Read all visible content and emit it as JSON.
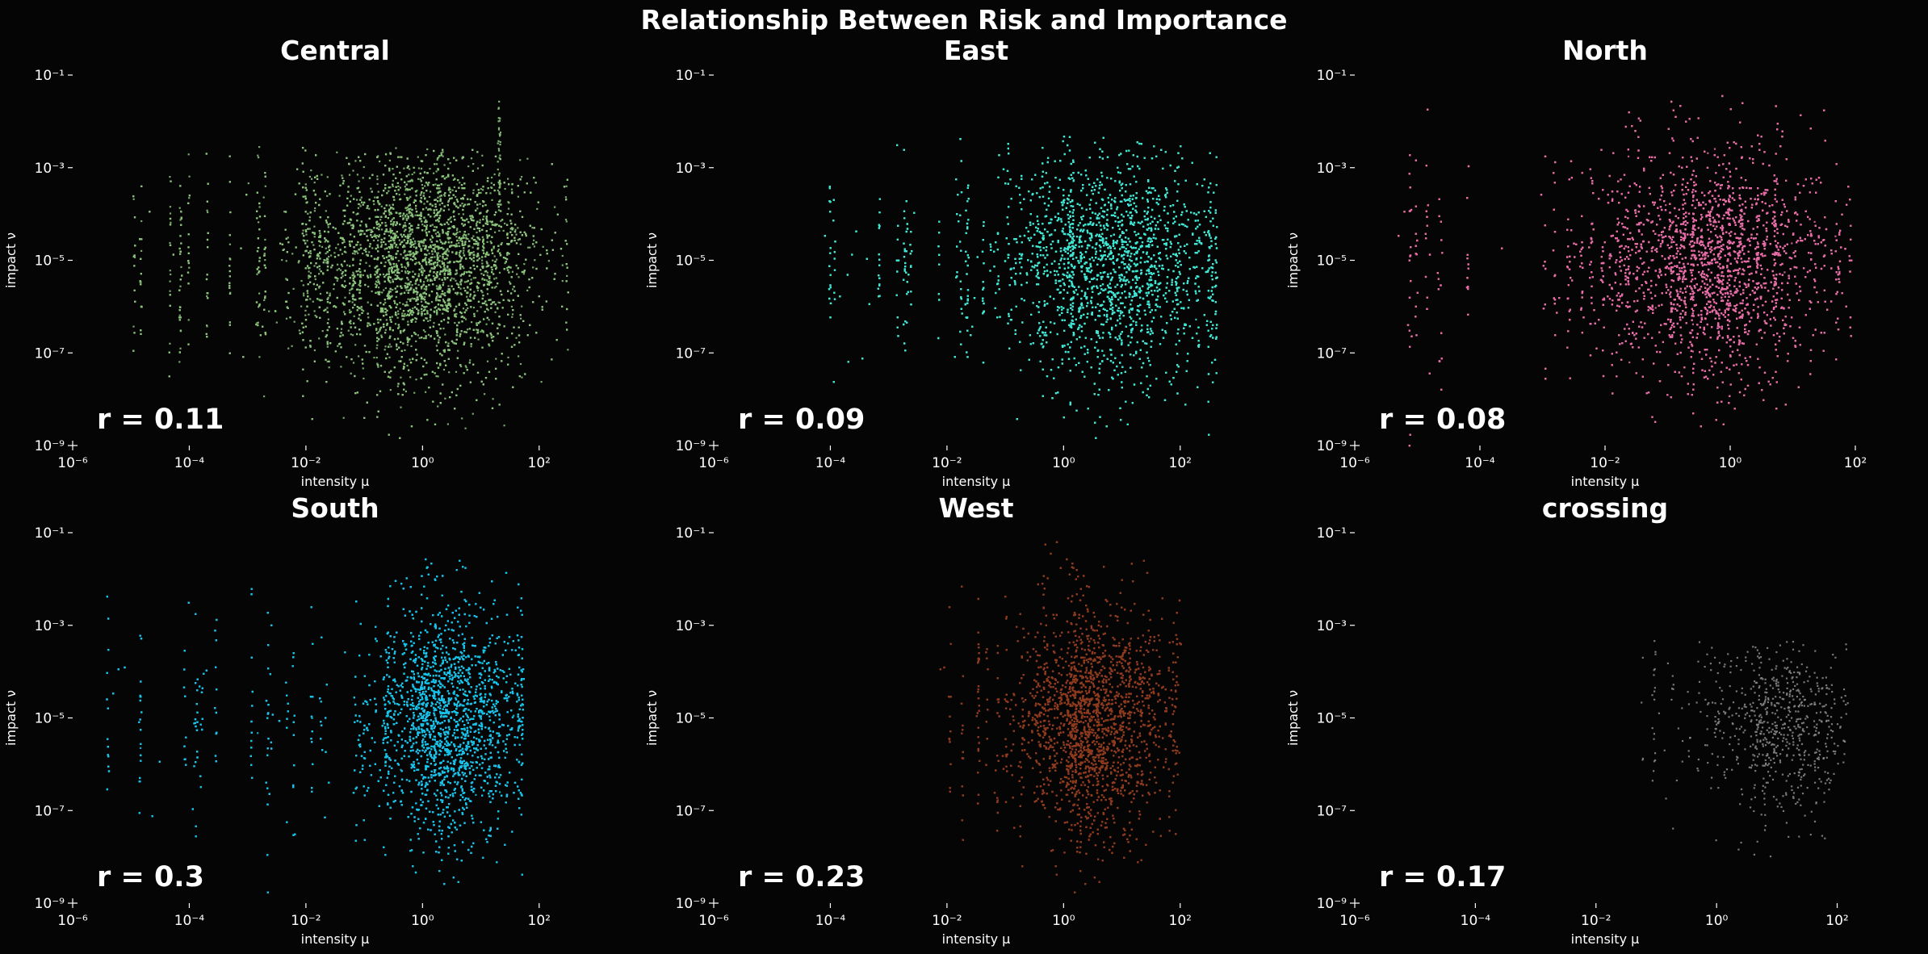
{
  "figure": {
    "title": "Relationship Between Risk and Importance",
    "background": "#050505",
    "text_color": "#ffffff"
  },
  "chart_data": [
    {
      "type": "scatter",
      "title": "Central",
      "xlabel": "intensity μ",
      "ylabel": "impact ν",
      "x_scale": "log",
      "y_scale": "log",
      "xlim": [
        1e-06,
        1000
      ],
      "ylim": [
        1e-09,
        0.1
      ],
      "x_ticks": [
        1e-06,
        0.0001,
        0.01,
        1,
        100
      ],
      "y_ticks": [
        1e-09,
        1e-07,
        1e-05,
        0.001,
        0.1
      ],
      "x_tick_labels": [
        "10⁻⁶",
        "10⁻⁴",
        "10⁻²",
        "10⁰",
        "10²"
      ],
      "y_tick_labels": [
        "10⁻⁹",
        "10⁻⁷",
        "10⁻⁵",
        "10⁻³",
        "10⁻¹"
      ],
      "grid": false,
      "annotation": "r = 0.11",
      "color": "#8cc47c",
      "series": [
        {
          "x_range": [
            1e-05,
            300
          ],
          "x_mode": 1,
          "x_spread": 1.0,
          "y_range": [
            1.5e-09,
            0.003
          ],
          "y_mode": 1e-05,
          "y_spread": 1.2,
          "spike": {
            "x": 20,
            "y_max": 0.04
          },
          "approx_points": 7000
        }
      ]
    },
    {
      "type": "scatter",
      "title": "East",
      "xlabel": "intensity μ",
      "ylabel": "impact ν",
      "x_scale": "log",
      "y_scale": "log",
      "xlim": [
        1e-06,
        1000
      ],
      "ylim": [
        1e-09,
        0.1
      ],
      "x_ticks": [
        1e-06,
        0.0001,
        0.01,
        1,
        100
      ],
      "y_ticks": [
        1e-09,
        1e-07,
        1e-05,
        0.001,
        0.1
      ],
      "x_tick_labels": [
        "10⁻⁶",
        "10⁻⁴",
        "10⁻²",
        "10⁰",
        "10²"
      ],
      "y_tick_labels": [
        "10⁻⁹",
        "10⁻⁷",
        "10⁻⁵",
        "10⁻³",
        "10⁻¹"
      ],
      "grid": false,
      "annotation": "r = 0.09",
      "color": "#3fe6d4",
      "series": [
        {
          "x_range": [
            5e-05,
            400
          ],
          "x_mode": 8,
          "x_spread": 0.9,
          "y_range": [
            1.5e-09,
            0.005
          ],
          "y_mode": 1e-05,
          "y_spread": 1.2,
          "approx_points": 9000
        }
      ]
    },
    {
      "type": "scatter",
      "title": "North",
      "xlabel": "intensity μ",
      "ylabel": "impact ν",
      "x_scale": "log",
      "y_scale": "log",
      "xlim": [
        1e-06,
        100
      ],
      "ylim": [
        1e-09,
        0.1
      ],
      "x_ticks": [
        1e-06,
        0.0001,
        0.01,
        1,
        100
      ],
      "y_ticks": [
        1e-09,
        1e-07,
        1e-05,
        0.001,
        0.1
      ],
      "x_tick_labels": [
        "10⁻⁶",
        "10⁻⁴",
        "10⁻²",
        "10⁰",
        "10²"
      ],
      "y_tick_labels": [
        "10⁻⁹",
        "10⁻⁷",
        "10⁻⁵",
        "10⁻³",
        "10⁻¹"
      ],
      "grid": false,
      "annotation": "r = 0.08",
      "color": "#e66ca6",
      "series": [
        {
          "x_range": [
            3e-06,
            80
          ],
          "x_mode": 0.5,
          "x_spread": 0.9,
          "y_range": [
            1e-09,
            0.04
          ],
          "y_mode": 1e-05,
          "y_spread": 1.2,
          "approx_points": 14000
        }
      ]
    },
    {
      "type": "scatter",
      "title": "South",
      "xlabel": "intensity μ",
      "ylabel": "impact ν",
      "x_scale": "log",
      "y_scale": "log",
      "xlim": [
        1e-06,
        1000
      ],
      "ylim": [
        1e-09,
        0.1
      ],
      "x_ticks": [
        1e-06,
        0.0001,
        0.01,
        1,
        100
      ],
      "y_ticks": [
        1e-09,
        1e-07,
        1e-05,
        0.001,
        0.1
      ],
      "x_tick_labels": [
        "10⁻⁶",
        "10⁻⁴",
        "10⁻²",
        "10⁰",
        "10²"
      ],
      "y_tick_labels": [
        "10⁻⁹",
        "10⁻⁷",
        "10⁻⁵",
        "10⁻³",
        "10⁻¹"
      ],
      "grid": false,
      "annotation": "r = 0.3",
      "color": "#19c3ea",
      "series": [
        {
          "x_range": [
            3e-06,
            50
          ],
          "x_mode": 3,
          "x_spread": 0.6,
          "y_range": [
            1.5e-09,
            0.03
          ],
          "y_mode": 1e-05,
          "y_spread": 1.2,
          "approx_points": 13000
        }
      ]
    },
    {
      "type": "scatter",
      "title": "West",
      "xlabel": "intensity μ",
      "ylabel": "impact ν",
      "x_scale": "log",
      "y_scale": "log",
      "xlim": [
        1e-06,
        1000
      ],
      "ylim": [
        1e-09,
        0.1
      ],
      "x_ticks": [
        1e-06,
        0.0001,
        0.01,
        1,
        100
      ],
      "y_ticks": [
        1e-09,
        1e-07,
        1e-05,
        0.001,
        0.1
      ],
      "x_tick_labels": [
        "10⁻⁶",
        "10⁻⁴",
        "10⁻²",
        "10⁰",
        "10²"
      ],
      "y_tick_labels": [
        "10⁻⁹",
        "10⁻⁷",
        "10⁻⁵",
        "10⁻³",
        "10⁻¹"
      ],
      "grid": false,
      "annotation": "r = 0.23",
      "color": "#8f3b1e",
      "series": [
        {
          "x_range": [
            0.005,
            100
          ],
          "x_mode": 3,
          "x_spread": 0.6,
          "y_range": [
            1.5e-09,
            0.08
          ],
          "y_mode": 1e-05,
          "y_spread": 1.2,
          "approx_points": 15000
        }
      ]
    },
    {
      "type": "scatter",
      "title": "crossing",
      "xlabel": "intensity μ",
      "ylabel": "impact ν",
      "x_scale": "log",
      "y_scale": "log",
      "xlim": [
        1e-06,
        200
      ],
      "ylim": [
        1e-09,
        0.1
      ],
      "x_ticks": [
        1e-06,
        0.0001,
        0.01,
        1,
        100
      ],
      "y_ticks": [
        1e-09,
        1e-07,
        1e-05,
        0.001,
        0.1
      ],
      "x_tick_labels": [
        "10⁻⁶",
        "10⁻⁴",
        "10⁻²",
        "10⁰",
        "10²"
      ],
      "y_tick_labels": [
        "10⁻⁹",
        "10⁻⁷",
        "10⁻⁵",
        "10⁻³",
        "10⁻¹"
      ],
      "grid": false,
      "annotation": "r = 0.17",
      "color": "#8c8c8c",
      "series": [
        {
          "x_range": [
            0.05,
            150
          ],
          "x_mode": 10,
          "x_spread": 0.6,
          "y_range": [
            1e-08,
            0.0005
          ],
          "y_mode": 1e-05,
          "y_spread": 1.0,
          "approx_points": 700
        }
      ]
    }
  ]
}
